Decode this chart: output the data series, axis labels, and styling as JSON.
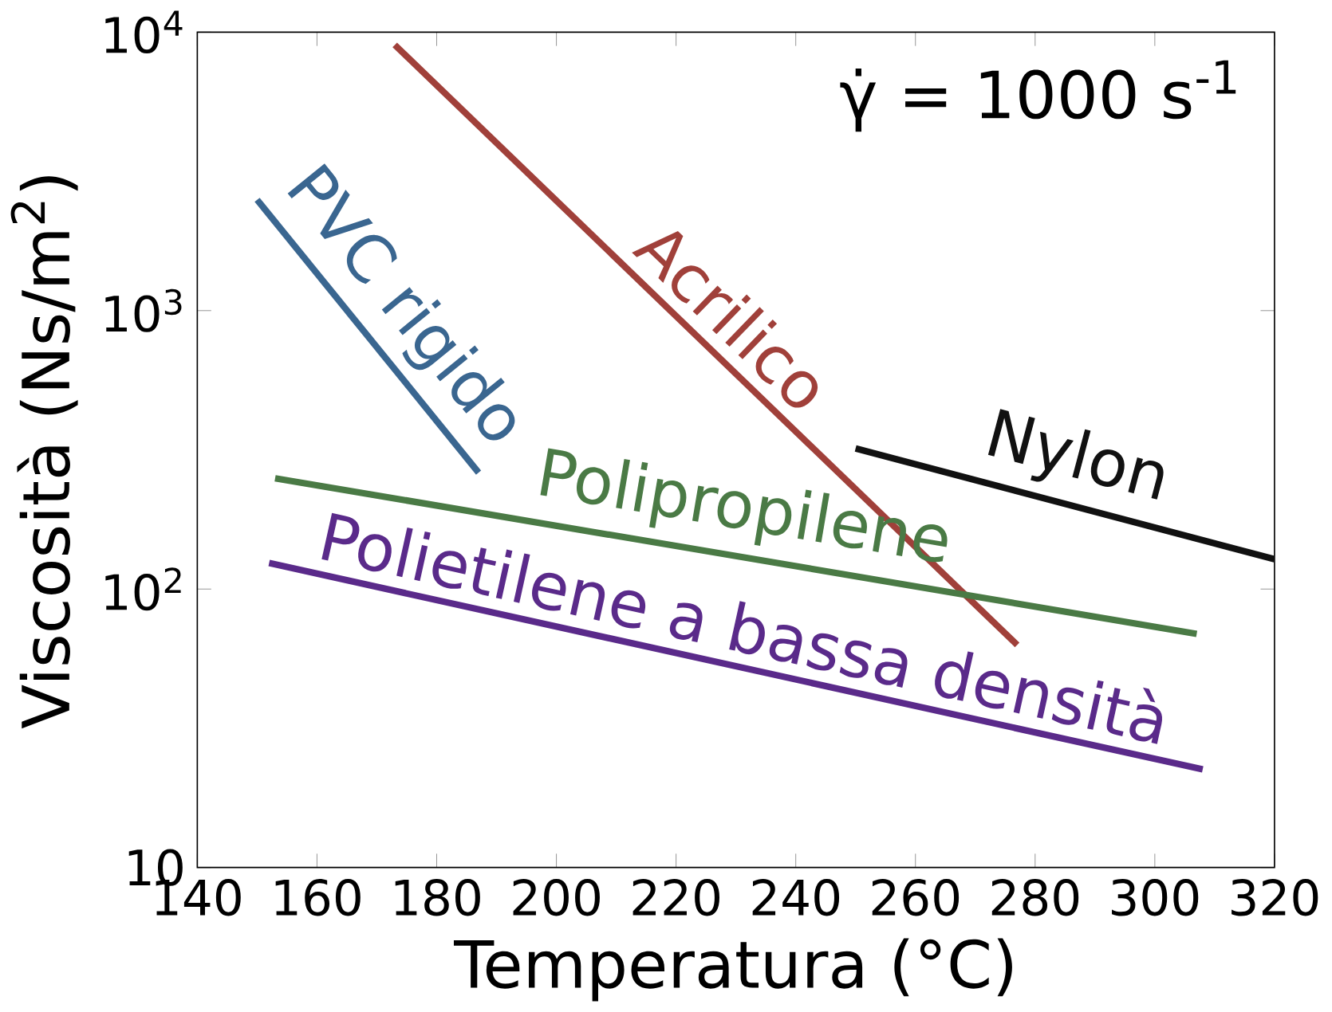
{
  "chart_data": {
    "type": "line",
    "xlabel": "Temperatura (°C)",
    "ylabel": "Viscosità (Ns/m$^{2}$)",
    "log": "y",
    "xlim": [
      140,
      320
    ],
    "ylim": [
      10,
      10000
    ],
    "xticks": [
      140,
      160,
      180,
      200,
      220,
      240,
      260,
      280,
      300,
      320
    ],
    "yticks": [
      10,
      {
        "value": 100,
        "label": "10$^{2}$"
      },
      {
        "value": 1000,
        "label": "10$^{3}$"
      },
      {
        "value": 10000,
        "label": "10$^{4}$"
      }
    ],
    "grid": false,
    "legend": false,
    "marker": "none",
    "line_style": "solid",
    "annotations": [
      "γ̇ = 1000 s$^{-1}$"
    ],
    "series": [
      {
        "name": "Acrilico",
        "color": "#a0403a",
        "x": [
          173,
          277
        ],
        "values": [
          9000,
          63
        ]
      },
      {
        "name": "PVC rigido",
        "color": "#3a6690",
        "x": [
          150,
          187
        ],
        "values": [
          2500,
          262
        ]
      },
      {
        "name": "Nylon",
        "color": "#111111",
        "x": [
          250,
          320
        ],
        "values": [
          320,
          128
        ]
      },
      {
        "name": "Polipropilene",
        "color": "#4a7a45",
        "x": [
          153,
          307
        ],
        "values": [
          250,
          69
        ]
      },
      {
        "name": "Polietilene a bassa densità",
        "color": "#5a2a8a",
        "x": [
          152,
          308
        ],
        "values": [
          124,
          22.5
        ]
      }
    ]
  }
}
